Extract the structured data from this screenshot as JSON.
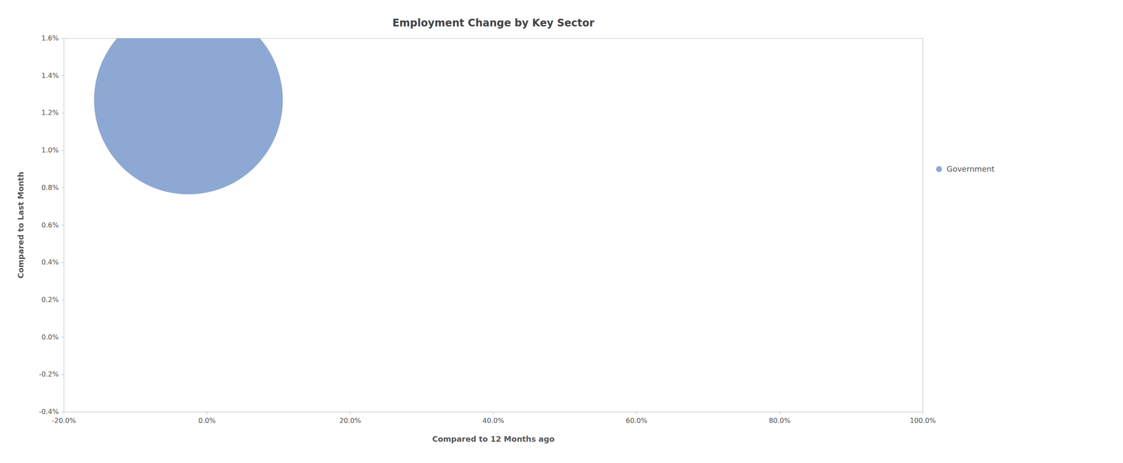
{
  "chart_data": {
    "type": "scatter",
    "title": "Employment Change by Key Sector",
    "xlabel": "Compared to 12 Months ago",
    "ylabel": "Compared to Last Month",
    "series": [
      {
        "name": "Government",
        "color": "#7094c8",
        "x": [
          -0.026
        ],
        "values": [
          0.0127
        ],
        "size": [
          80000
        ]
      }
    ],
    "xlim": [
      -0.2,
      1.0
    ],
    "ylim": [
      -0.004,
      0.016
    ],
    "xticks": [
      {
        "value": -0.2,
        "label": "-20.0%"
      },
      {
        "value": 0.0,
        "label": "0.0%"
      },
      {
        "value": 0.2,
        "label": "20.0%"
      },
      {
        "value": 0.4,
        "label": "40.0%"
      },
      {
        "value": 0.6,
        "label": "60.0%"
      },
      {
        "value": 0.8,
        "label": "80.0%"
      },
      {
        "value": 1.0,
        "label": "100.0%"
      }
    ],
    "yticks": [
      {
        "value": -0.004,
        "label": "-0.4%"
      },
      {
        "value": -0.002,
        "label": "-0.2%"
      },
      {
        "value": 0.0,
        "label": "0.0%"
      },
      {
        "value": 0.002,
        "label": "0.2%"
      },
      {
        "value": 0.004,
        "label": "0.4%"
      },
      {
        "value": 0.006,
        "label": "0.6%"
      },
      {
        "value": 0.008,
        "label": "0.8%"
      },
      {
        "value": 0.01,
        "label": "1.0%"
      },
      {
        "value": 0.012,
        "label": "1.2%"
      },
      {
        "value": 0.014,
        "label": "1.4%"
      },
      {
        "value": 0.016,
        "label": "1.6%"
      }
    ],
    "grid": false,
    "legend": "right"
  }
}
